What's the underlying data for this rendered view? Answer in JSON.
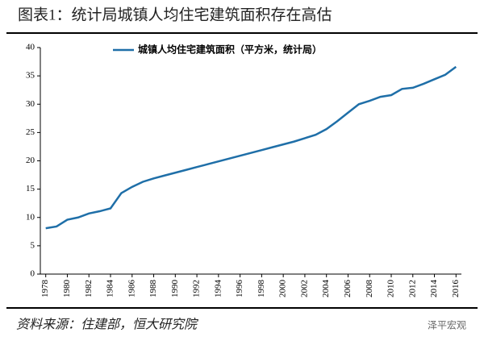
{
  "chart_data": {
    "type": "line",
    "title": "图表1：统计局城镇人均住宅建筑面积存在高估",
    "x": [
      1978,
      1979,
      1980,
      1981,
      1982,
      1983,
      1984,
      1985,
      1986,
      1987,
      1988,
      1989,
      1990,
      1991,
      1992,
      1993,
      1994,
      1995,
      1996,
      1997,
      1998,
      1999,
      2000,
      2001,
      2002,
      2003,
      2004,
      2005,
      2006,
      2007,
      2008,
      2009,
      2010,
      2011,
      2012,
      2013,
      2014,
      2015,
      2016
    ],
    "series": [
      {
        "name": "城镇人均住宅建筑面积（平方米，统计局）",
        "color": "#1f6fa8",
        "values": [
          8.1,
          8.4,
          9.6,
          10.0,
          10.7,
          11.1,
          11.6,
          14.3,
          15.4,
          16.3,
          16.9,
          17.4,
          17.9,
          18.4,
          18.9,
          19.4,
          19.9,
          20.4,
          20.9,
          21.4,
          21.9,
          22.4,
          22.9,
          23.4,
          24.0,
          24.6,
          25.6,
          27.0,
          28.5,
          30.0,
          30.6,
          31.3,
          31.6,
          32.7,
          32.9,
          33.6,
          34.4,
          35.2,
          36.6
        ]
      }
    ],
    "xlim": [
      1977.5,
      2016.5
    ],
    "xticks": [
      1978,
      1980,
      1982,
      1984,
      1986,
      1988,
      1990,
      1992,
      1994,
      1996,
      1998,
      2000,
      2002,
      2004,
      2006,
      2008,
      2010,
      2012,
      2014,
      2016
    ],
    "ylim": [
      0,
      40
    ],
    "yticks": [
      0,
      5,
      10,
      15,
      20,
      25,
      30,
      35,
      40
    ]
  },
  "source": "资料来源：住建部，恒大研究院",
  "watermark": "泽平宏观"
}
